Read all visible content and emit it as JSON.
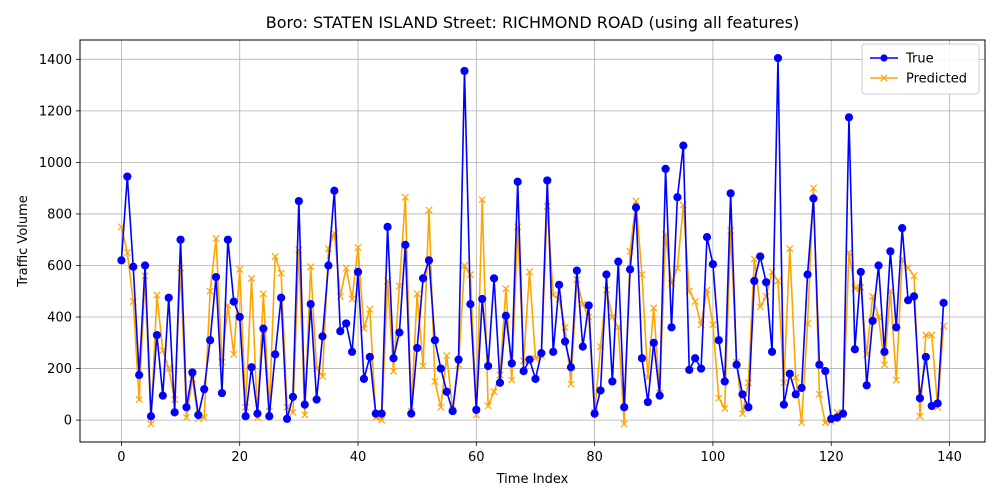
{
  "chart_data": {
    "type": "line",
    "title": "Boro: STATEN ISLAND Street: RICHMOND ROAD (using all features)",
    "xlabel": "Time Index",
    "ylabel": "Traffic Volume",
    "xlim": [
      -7,
      146
    ],
    "ylim": [
      -85,
      1475
    ],
    "xticks": [
      0,
      20,
      40,
      60,
      80,
      100,
      120,
      140
    ],
    "yticks": [
      0,
      200,
      400,
      600,
      800,
      1000,
      1200,
      1400
    ],
    "grid": true,
    "legend_position": "top-right",
    "series": [
      {
        "name": "True",
        "color": "#0000ff",
        "marker": "circle",
        "values": [
          620,
          945,
          595,
          175,
          600,
          15,
          330,
          95,
          475,
          30,
          700,
          50,
          185,
          20,
          120,
          310,
          555,
          105,
          700,
          460,
          400,
          15,
          205,
          25,
          355,
          15,
          255,
          475,
          5,
          90,
          850,
          60,
          450,
          80,
          325,
          600,
          890,
          345,
          375,
          265,
          575,
          160,
          245,
          25,
          25,
          750,
          240,
          340,
          680,
          25,
          280,
          550,
          620,
          310,
          200,
          110,
          35,
          235,
          1355,
          450,
          40,
          470,
          210,
          550,
          145,
          405,
          220,
          925,
          190,
          235,
          160,
          260,
          930,
          265,
          525,
          305,
          205,
          580,
          285,
          445,
          25,
          115,
          565,
          150,
          615,
          50,
          585,
          825,
          240,
          70,
          300,
          95,
          975,
          360,
          865,
          1065,
          195,
          240,
          200,
          710,
          605,
          310,
          150,
          880,
          215,
          100,
          50,
          540,
          635,
          535,
          265,
          1405,
          60,
          180,
          100,
          125,
          565,
          860,
          215,
          190,
          5,
          10,
          25,
          1175,
          275,
          575,
          135,
          385,
          600,
          265,
          655,
          360,
          745,
          465,
          480,
          85,
          245,
          55,
          65,
          455
        ]
      },
      {
        "name": "Predicted",
        "color": "#ffa500",
        "marker": "x",
        "values": [
          750,
          650,
          460,
          80,
          560,
          -15,
          485,
          270,
          200,
          80,
          590,
          10,
          160,
          5,
          10,
          500,
          705,
          225,
          445,
          255,
          585,
          50,
          550,
          10,
          490,
          35,
          635,
          570,
          50,
          30,
          660,
          20,
          595,
          200,
          170,
          665,
          725,
          480,
          590,
          470,
          670,
          355,
          430,
          10,
          0,
          540,
          190,
          520,
          865,
          35,
          490,
          210,
          815,
          150,
          50,
          250,
          40,
          215,
          600,
          565,
          20,
          855,
          55,
          110,
          175,
          510,
          155,
          750,
          230,
          575,
          240,
          250,
          830,
          485,
          470,
          360,
          140,
          545,
          450,
          400,
          30,
          285,
          505,
          400,
          360,
          -15,
          655,
          850,
          565,
          165,
          435,
          105,
          720,
          530,
          590,
          835,
          500,
          460,
          370,
          505,
          370,
          85,
          45,
          735,
          225,
          25,
          145,
          625,
          440,
          480,
          575,
          540,
          145,
          665,
          165,
          -10,
          375,
          900,
          100,
          -10,
          -5,
          30,
          20,
          650,
          510,
          515,
          255,
          480,
          400,
          215,
          500,
          155,
          625,
          590,
          560,
          15,
          330,
          330,
          50,
          365
        ]
      }
    ]
  }
}
